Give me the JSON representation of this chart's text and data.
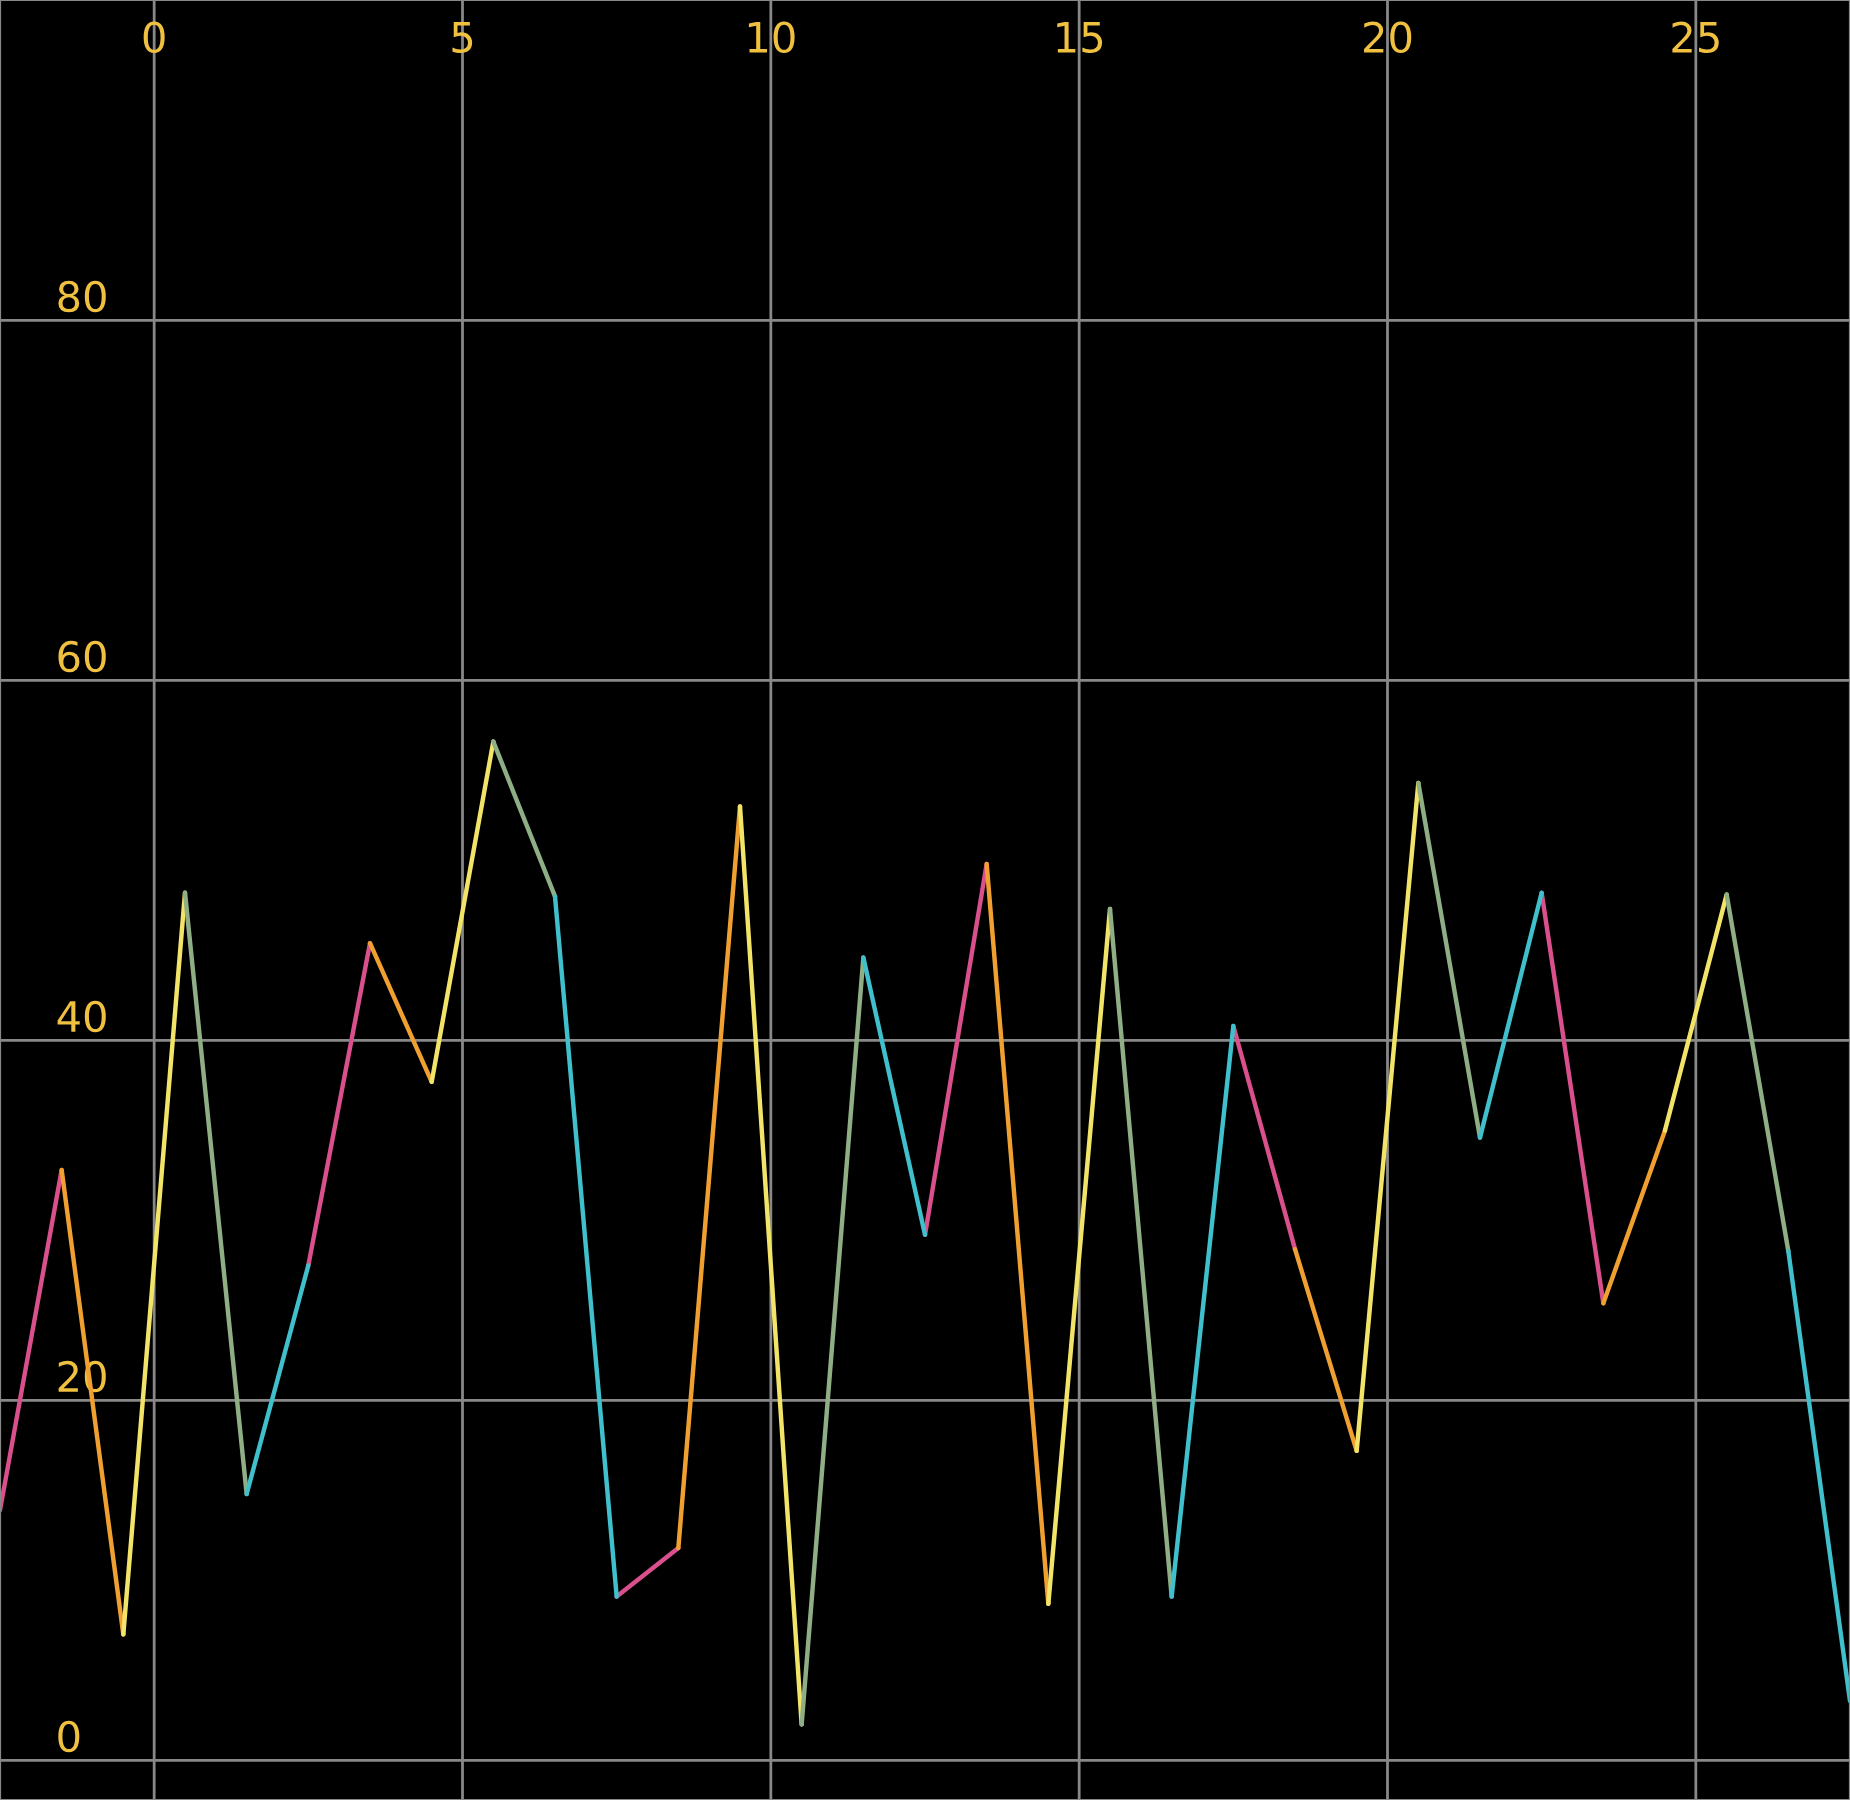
{
  "chart_data": {
    "type": "line",
    "x": [
      -2.5,
      -1.5,
      -0.5,
      0.5,
      1.5,
      2.5,
      3.5,
      4.5,
      5.5,
      6.5,
      7.5,
      8.5,
      9.5,
      10.5,
      11.5,
      12.5,
      13.5,
      14.5,
      15.5,
      16.5,
      17.5,
      18.5,
      19.5,
      20.5,
      21.5,
      22.5,
      23.5,
      24.5,
      25.5,
      26.5,
      27.5
    ],
    "series": [
      {
        "color": "#d9508c",
        "values": [
          13.9,
          32.8,
          null,
          null,
          null,
          27.5,
          45.4,
          null,
          null,
          null,
          9.1,
          11.8,
          null,
          null,
          null,
          29.2,
          49.8,
          null,
          null,
          null,
          40.8,
          28.4,
          null,
          null,
          null,
          48.2,
          25.4,
          null,
          null,
          null,
          null
        ]
      },
      {
        "color": "#f0a030",
        "values": [
          null,
          32.8,
          7.0,
          null,
          null,
          null,
          45.4,
          37.7,
          null,
          null,
          null,
          11.8,
          53.0,
          null,
          null,
          null,
          49.8,
          8.7,
          null,
          null,
          null,
          28.4,
          17.2,
          null,
          null,
          null,
          25.4,
          35.0,
          null,
          null,
          null
        ]
      },
      {
        "color": "#f2e468",
        "values": [
          null,
          null,
          7.0,
          48.2,
          null,
          null,
          null,
          37.7,
          56.6,
          null,
          null,
          null,
          53.0,
          2.0,
          null,
          null,
          null,
          8.7,
          47.3,
          null,
          null,
          null,
          17.2,
          54.3,
          null,
          null,
          null,
          35.0,
          48.1,
          null,
          null
        ]
      },
      {
        "color": "#8fae86",
        "values": [
          null,
          null,
          null,
          48.2,
          14.8,
          null,
          null,
          null,
          56.6,
          48.0,
          null,
          null,
          null,
          2.0,
          44.6,
          null,
          null,
          null,
          47.3,
          9.1,
          null,
          null,
          null,
          54.3,
          34.6,
          null,
          null,
          null,
          48.1,
          28.3,
          null
        ]
      },
      {
        "color": "#3fc0cc",
        "values": [
          null,
          null,
          null,
          null,
          14.8,
          27.5,
          null,
          null,
          null,
          48.0,
          9.1,
          null,
          null,
          null,
          44.6,
          29.2,
          null,
          null,
          null,
          9.1,
          40.8,
          null,
          null,
          null,
          34.6,
          48.2,
          null,
          null,
          null,
          28.3,
          3.3
        ]
      }
    ],
    "xlim": [
      -2.5,
      27.5
    ],
    "ylim": [
      -2.2,
      97.8
    ],
    "xticks": [
      0,
      5,
      10,
      15,
      20,
      25
    ],
    "yticks": [
      0,
      20,
      40,
      60,
      80
    ],
    "grid": true,
    "marker": "none",
    "line_style": "solid"
  }
}
